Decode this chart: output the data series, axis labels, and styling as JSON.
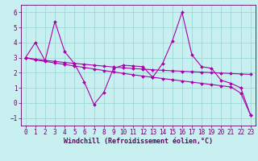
{
  "background_color": "#c8f0f0",
  "grid_color": "#a0d8d8",
  "line_color": "#aa00aa",
  "xlabel": "Windchill (Refroidissement éolien,°C)",
  "xlim": [
    -0.5,
    23.5
  ],
  "ylim": [
    -1.5,
    6.5
  ],
  "yticks": [
    -1,
    0,
    1,
    2,
    3,
    4,
    5,
    6
  ],
  "xticks": [
    0,
    1,
    2,
    3,
    4,
    5,
    6,
    7,
    8,
    9,
    10,
    11,
    12,
    13,
    14,
    15,
    16,
    17,
    18,
    19,
    20,
    21,
    22,
    23
  ],
  "series1_x": [
    0,
    1,
    2,
    3,
    4,
    5,
    6,
    7,
    8,
    9,
    10,
    11,
    12,
    13,
    14,
    15,
    16,
    17,
    18,
    19,
    20,
    21,
    22,
    23
  ],
  "series1_y": [
    3.0,
    4.0,
    2.8,
    5.4,
    3.4,
    2.6,
    1.4,
    -0.1,
    0.7,
    2.3,
    2.5,
    2.45,
    2.4,
    1.7,
    2.6,
    4.1,
    6.0,
    3.2,
    2.4,
    2.3,
    1.5,
    1.3,
    1.0,
    -0.8
  ],
  "series2_x": [
    0,
    1,
    2,
    3,
    4,
    5,
    6,
    7,
    8,
    9,
    10,
    11,
    12,
    13,
    14,
    15,
    16,
    17,
    18,
    19,
    20,
    21,
    22,
    23
  ],
  "series2_y": [
    3.0,
    2.9,
    2.82,
    2.75,
    2.68,
    2.62,
    2.56,
    2.5,
    2.44,
    2.38,
    2.33,
    2.28,
    2.24,
    2.2,
    2.16,
    2.13,
    2.1,
    2.07,
    2.04,
    2.01,
    1.98,
    1.95,
    1.92,
    1.89
  ],
  "series3_x": [
    0,
    1,
    2,
    3,
    4,
    5,
    6,
    7,
    8,
    9,
    10,
    11,
    12,
    13,
    14,
    15,
    16,
    17,
    18,
    19,
    20,
    21,
    22,
    23
  ],
  "series3_y": [
    3.0,
    2.85,
    2.75,
    2.65,
    2.55,
    2.45,
    2.35,
    2.25,
    2.15,
    2.05,
    1.96,
    1.87,
    1.78,
    1.7,
    1.62,
    1.54,
    1.46,
    1.38,
    1.3,
    1.22,
    1.14,
    1.06,
    0.65,
    -0.8
  ],
  "label_fontsize": 6,
  "tick_fontsize": 5.5
}
